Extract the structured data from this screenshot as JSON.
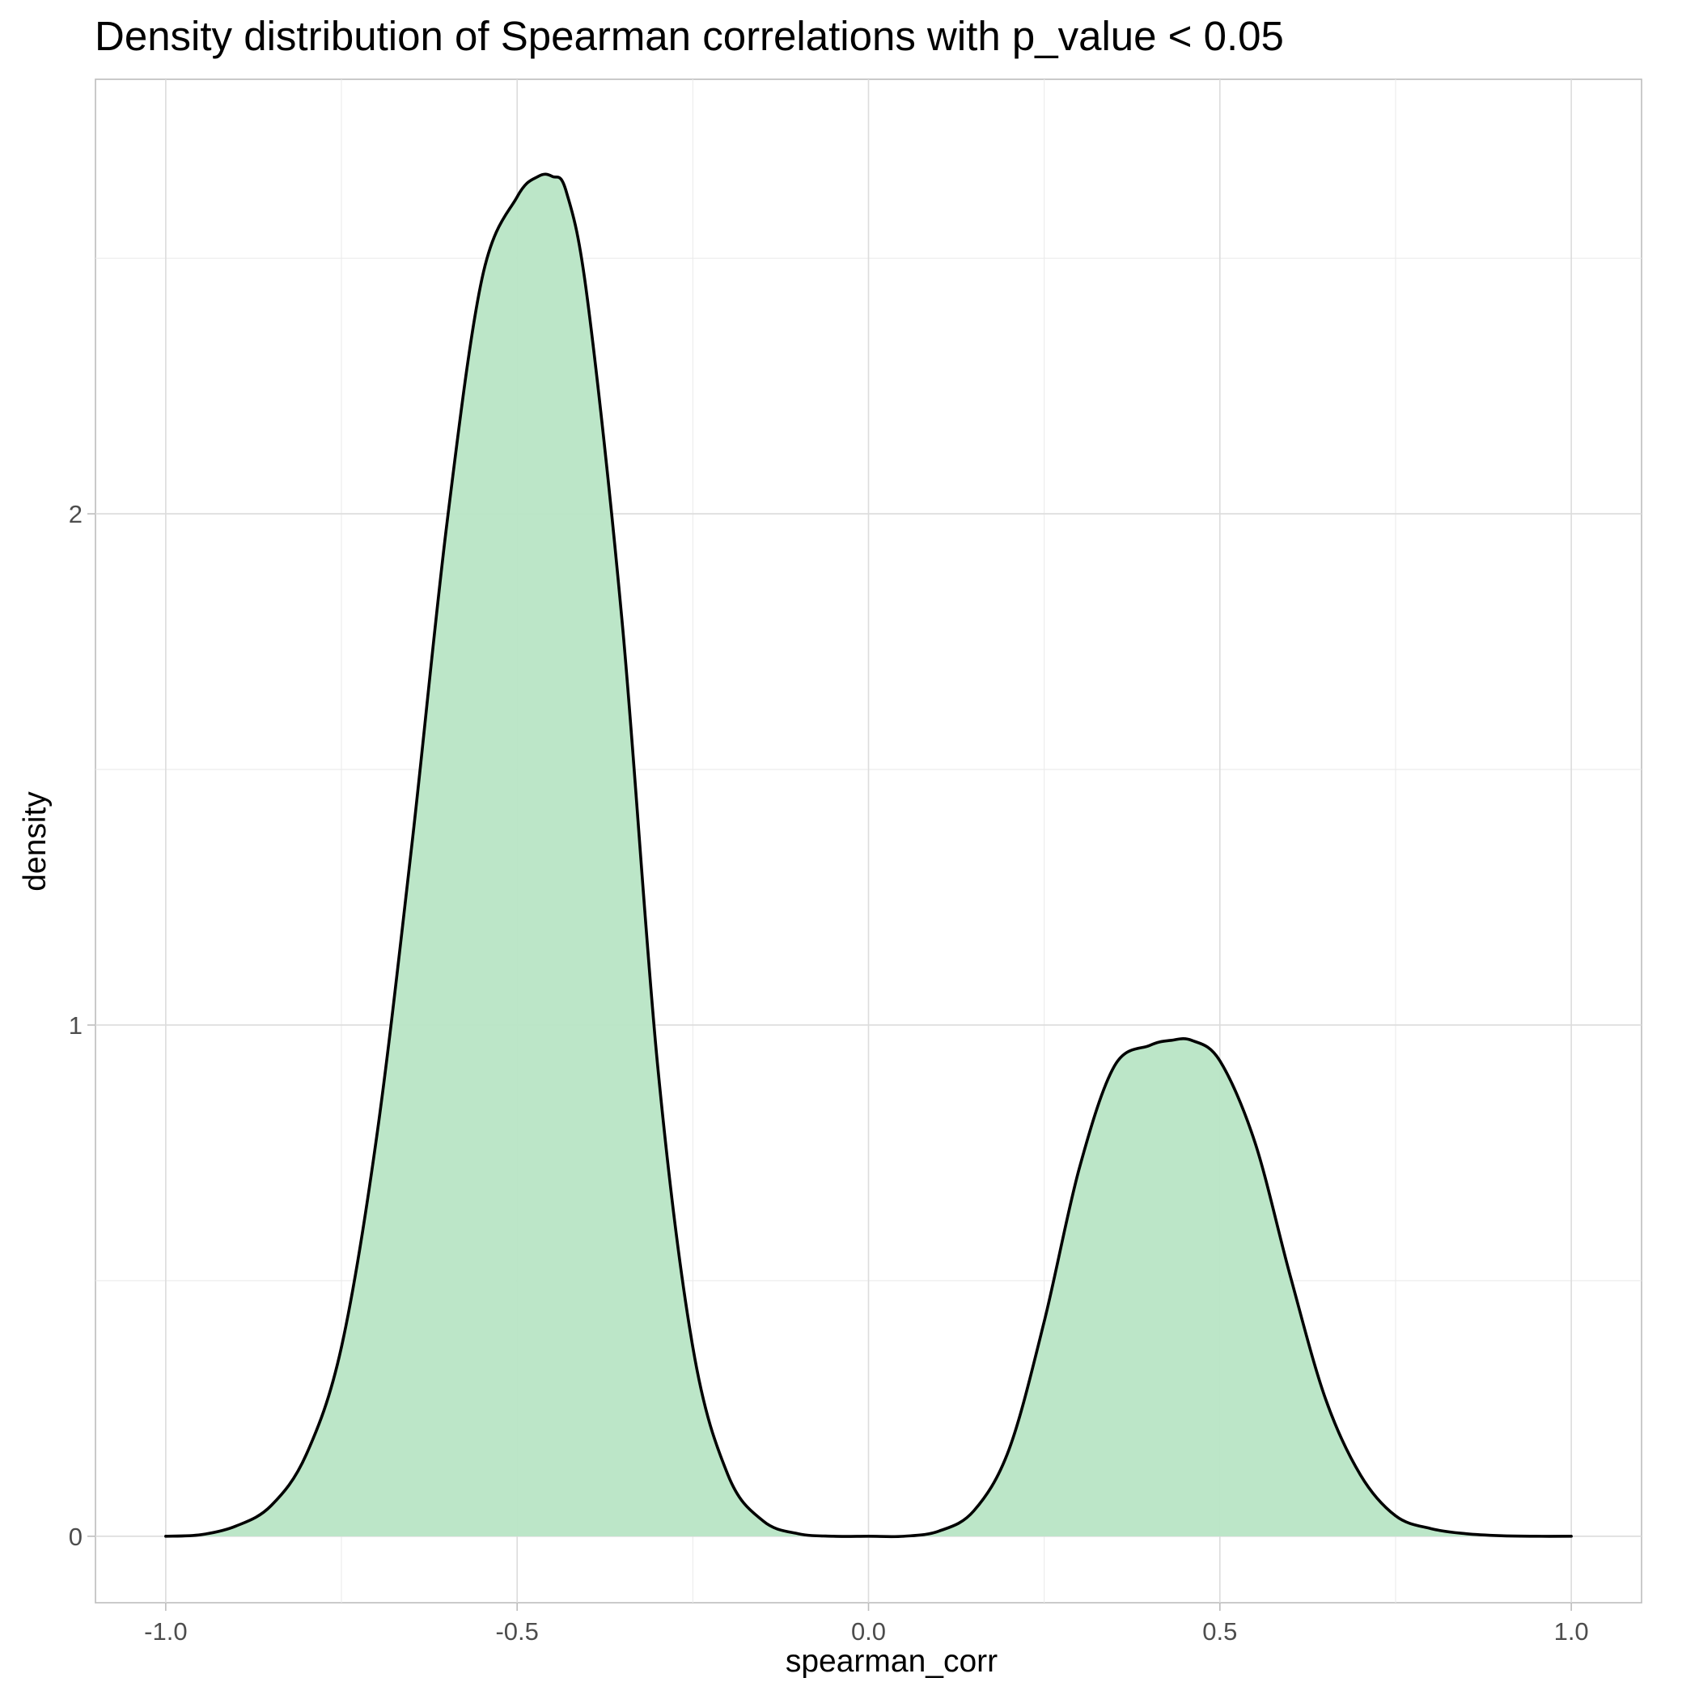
{
  "chart_data": {
    "type": "area",
    "title": "Density distribution of Spearman correlations with p_value < 0.05",
    "xlabel": "spearman_corr",
    "ylabel": "density",
    "xlim": [
      -1.1,
      1.1
    ],
    "ylim": [
      -0.13,
      2.85
    ],
    "x_ticks": [
      -1.0,
      -0.5,
      0.0,
      0.5,
      1.0
    ],
    "x_tick_labels": [
      "-1.0",
      "-0.5",
      "0.0",
      "0.5",
      "1.0"
    ],
    "x_minor_ticks": [
      -0.75,
      -0.25,
      0.25,
      0.75
    ],
    "y_ticks": [
      0,
      1,
      2
    ],
    "y_tick_labels": [
      "0",
      "1",
      "2"
    ],
    "y_minor_ticks": [
      0.5,
      1.5,
      2.5
    ],
    "grid": true,
    "fill_color": "#b8e5c5",
    "line_color": "#000000",
    "series": [
      {
        "x": [
          -1.0,
          -0.95,
          -0.9,
          -0.85,
          -0.8,
          -0.75,
          -0.7,
          -0.65,
          -0.6,
          -0.55,
          -0.5,
          -0.47,
          -0.45,
          -0.43,
          -0.4,
          -0.35,
          -0.3,
          -0.25,
          -0.2,
          -0.15,
          -0.1,
          -0.05,
          0.0,
          0.05,
          0.1,
          0.15,
          0.2,
          0.25,
          0.3,
          0.35,
          0.4,
          0.43,
          0.46,
          0.5,
          0.55,
          0.6,
          0.65,
          0.7,
          0.75,
          0.8,
          0.85,
          0.9,
          0.95,
          1.0
        ],
        "y": [
          0.0,
          0.003,
          0.02,
          0.06,
          0.16,
          0.37,
          0.78,
          1.35,
          1.98,
          2.46,
          2.62,
          2.66,
          2.66,
          2.63,
          2.42,
          1.78,
          0.92,
          0.37,
          0.12,
          0.03,
          0.005,
          0.0,
          0.0,
          0.0,
          0.01,
          0.05,
          0.17,
          0.42,
          0.72,
          0.92,
          0.96,
          0.97,
          0.97,
          0.93,
          0.77,
          0.51,
          0.27,
          0.12,
          0.04,
          0.015,
          0.005,
          0.001,
          0.0,
          0.0
        ]
      }
    ]
  }
}
